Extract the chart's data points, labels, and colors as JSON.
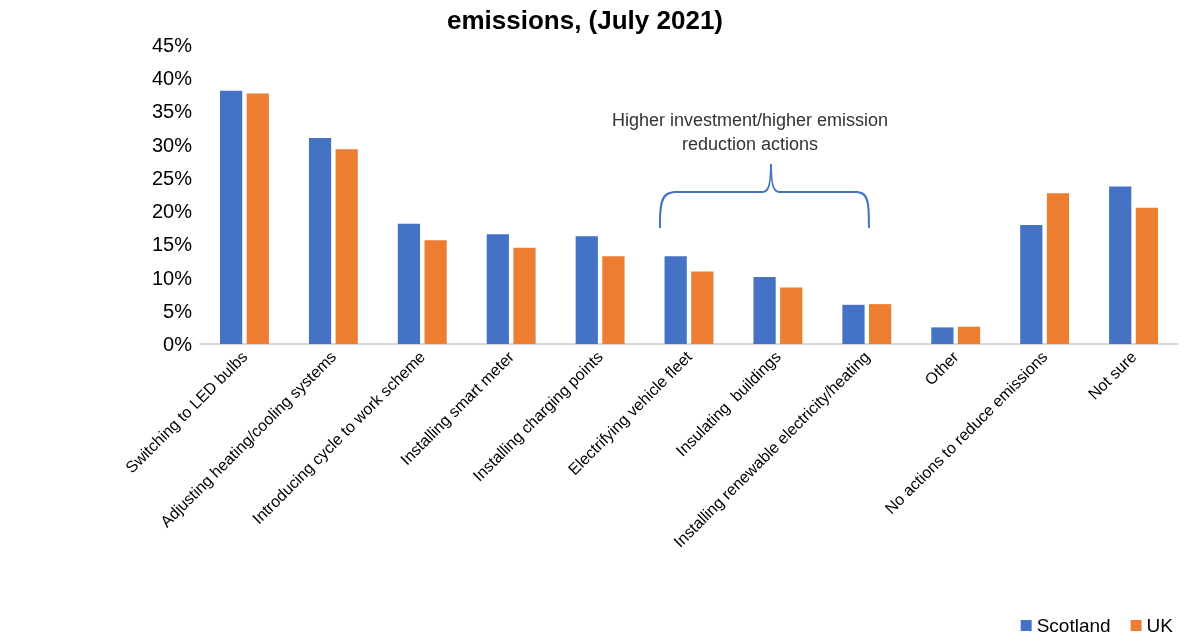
{
  "chart_data": {
    "type": "bar",
    "title": "emissions, (July 2021)",
    "categories": [
      "Switching to LED bulbs",
      "Adjusting heating/cooling systems",
      "Introducing cycle to work scheme",
      "Installing smart meter",
      "Installing charging points",
      "Electrifying vehicle fleet",
      "Insulating  buildings",
      "Installing renewable electricity/heating",
      "Other",
      "No actions to reduce emissions",
      "Not sure"
    ],
    "series": [
      {
        "name": "Scotland",
        "color": "#4472c4",
        "values": [
          38.1,
          31.0,
          18.1,
          16.5,
          16.2,
          13.2,
          10.1,
          5.9,
          2.5,
          17.9,
          23.7
        ]
      },
      {
        "name": "UK",
        "color": "#ed7d31",
        "values": [
          37.7,
          29.3,
          15.6,
          14.5,
          13.2,
          10.9,
          8.5,
          6.0,
          2.6,
          22.7,
          20.5
        ]
      }
    ],
    "ylim": [
      0,
      45
    ],
    "yticks": [
      {
        "value": 0,
        "label": "0%"
      },
      {
        "value": 5,
        "label": "5%"
      },
      {
        "value": 10,
        "label": "10%"
      },
      {
        "value": 15,
        "label": "15%"
      },
      {
        "value": 20,
        "label": "20%"
      },
      {
        "value": 25,
        "label": "25%"
      },
      {
        "value": 30,
        "label": "30%"
      },
      {
        "value": 35,
        "label": "35%"
      },
      {
        "value": 40,
        "label": "40%"
      },
      {
        "value": 45,
        "label": "45%"
      }
    ],
    "annotations": [
      "Higher investment/higher emission\nreduction actions"
    ],
    "grid": false,
    "legend": "bottom right"
  }
}
